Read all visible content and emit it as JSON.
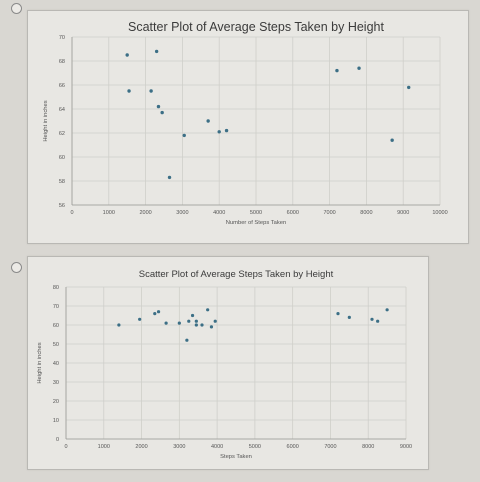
{
  "options": [
    {
      "selected": false
    },
    {
      "selected": false
    }
  ],
  "chart_data": [
    {
      "type": "scatter",
      "title": "Scatter Plot of Average Steps Taken by Height",
      "xlabel": "Number of Steps Taken",
      "ylabel": "Height in inches",
      "xlim": [
        0,
        10000
      ],
      "ylim": [
        56,
        70
      ],
      "xticks": [
        "0",
        "1000",
        "2000",
        "3000",
        "4000",
        "5000",
        "6000",
        "7000",
        "8000",
        "9000",
        "10000"
      ],
      "yticks": [
        "70",
        "68",
        "66",
        "64",
        "62",
        "60",
        "58",
        "56"
      ],
      "grid": true,
      "points": [
        {
          "x": 1500,
          "y": 68.5
        },
        {
          "x": 2300,
          "y": 68.8
        },
        {
          "x": 1550,
          "y": 65.5
        },
        {
          "x": 2150,
          "y": 65.5
        },
        {
          "x": 2350,
          "y": 64.2
        },
        {
          "x": 2450,
          "y": 63.7
        },
        {
          "x": 3050,
          "y": 61.8
        },
        {
          "x": 3700,
          "y": 63.0
        },
        {
          "x": 4000,
          "y": 62.1
        },
        {
          "x": 4200,
          "y": 62.2
        },
        {
          "x": 2650,
          "y": 58.3
        },
        {
          "x": 7200,
          "y": 67.2
        },
        {
          "x": 7800,
          "y": 67.4
        },
        {
          "x": 8700,
          "y": 61.4
        },
        {
          "x": 9150,
          "y": 65.8
        }
      ]
    },
    {
      "type": "scatter",
      "title": "Scatter Plot of Average Steps Taken by Height",
      "xlabel": "Steps Taken",
      "ylabel": "Height in inches",
      "xlim": [
        0,
        9000
      ],
      "ylim": [
        0,
        80
      ],
      "xticks": [
        "0",
        "1000",
        "2000",
        "3000",
        "4000",
        "5000",
        "6000",
        "7000",
        "8000",
        "9000"
      ],
      "yticks": [
        "80",
        "70",
        "60",
        "50",
        "40",
        "30",
        "20",
        "10",
        "0"
      ],
      "grid": true,
      "points": [
        {
          "x": 1400,
          "y": 60
        },
        {
          "x": 1950,
          "y": 63
        },
        {
          "x": 2350,
          "y": 66
        },
        {
          "x": 2450,
          "y": 67
        },
        {
          "x": 2650,
          "y": 61
        },
        {
          "x": 3000,
          "y": 61
        },
        {
          "x": 3250,
          "y": 62
        },
        {
          "x": 3350,
          "y": 65
        },
        {
          "x": 3450,
          "y": 60
        },
        {
          "x": 3450,
          "y": 62
        },
        {
          "x": 3600,
          "y": 60
        },
        {
          "x": 3750,
          "y": 68
        },
        {
          "x": 3850,
          "y": 59
        },
        {
          "x": 3950,
          "y": 62
        },
        {
          "x": 3200,
          "y": 52
        },
        {
          "x": 7200,
          "y": 66
        },
        {
          "x": 7500,
          "y": 64
        },
        {
          "x": 8100,
          "y": 63
        },
        {
          "x": 8250,
          "y": 62
        },
        {
          "x": 8500,
          "y": 68
        }
      ]
    }
  ]
}
